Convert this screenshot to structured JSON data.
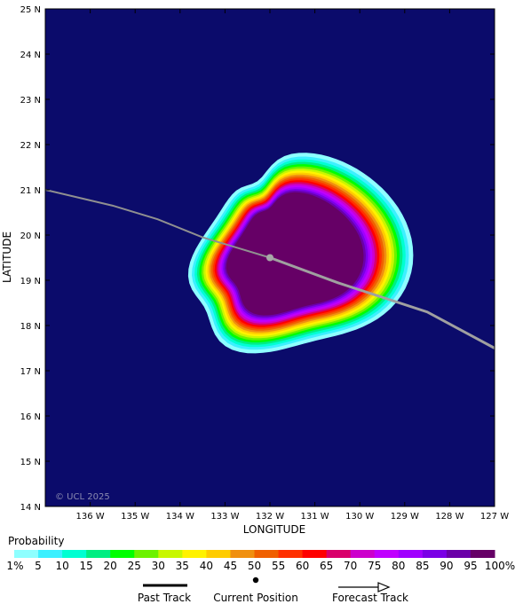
{
  "map": {
    "x_axis_title": "LONGITUDE",
    "y_axis_title": "LATITUDE",
    "lon_ticks": [
      "136 W",
      "135 W",
      "134 W",
      "133 W",
      "132 W",
      "131 W",
      "130 W",
      "129 W",
      "128 W",
      "127 W"
    ],
    "lat_ticks": [
      "25 N",
      "24 N",
      "23 N",
      "22 N",
      "21 N",
      "20 N",
      "19 N",
      "18 N",
      "17 N",
      "16 N",
      "15 N",
      "14 N"
    ],
    "copyright": "© UCL 2025",
    "background_color": "#0b0b6b",
    "current_position": {
      "lon": -132.0,
      "lat": 19.5
    },
    "track": [
      {
        "lon": -137.0,
        "lat": 21.0
      },
      {
        "lon": -135.5,
        "lat": 20.65
      },
      {
        "lon": -134.5,
        "lat": 20.35
      },
      {
        "lon": -133.5,
        "lat": 19.95
      },
      {
        "lon": -132.0,
        "lat": 19.5
      },
      {
        "lon": -130.5,
        "lat": 18.95
      },
      {
        "lon": -128.5,
        "lat": 18.3
      },
      {
        "lon": -127.0,
        "lat": 17.5
      }
    ]
  },
  "legend": {
    "title": "Probability",
    "labels": [
      "1%",
      "5",
      "10",
      "15",
      "20",
      "25",
      "30",
      "35",
      "40",
      "45",
      "50",
      "55",
      "60",
      "65",
      "70",
      "75",
      "80",
      "85",
      "90",
      "95",
      "100%"
    ],
    "colors": [
      "#8effff",
      "#3cf0ff",
      "#00ffd2",
      "#00ee82",
      "#00ff00",
      "#6cf200",
      "#c8f700",
      "#fff200",
      "#ffcc00",
      "#f09010",
      "#f06000",
      "#ff3000",
      "#ff0000",
      "#d9006b",
      "#cc00cc",
      "#c000ff",
      "#a000ff",
      "#7a00e6",
      "#6a00a8",
      "#660066"
    ]
  },
  "key": {
    "past_track": "Past Track",
    "current_position": "Current Position",
    "forecast_track": "Forecast Track"
  }
}
